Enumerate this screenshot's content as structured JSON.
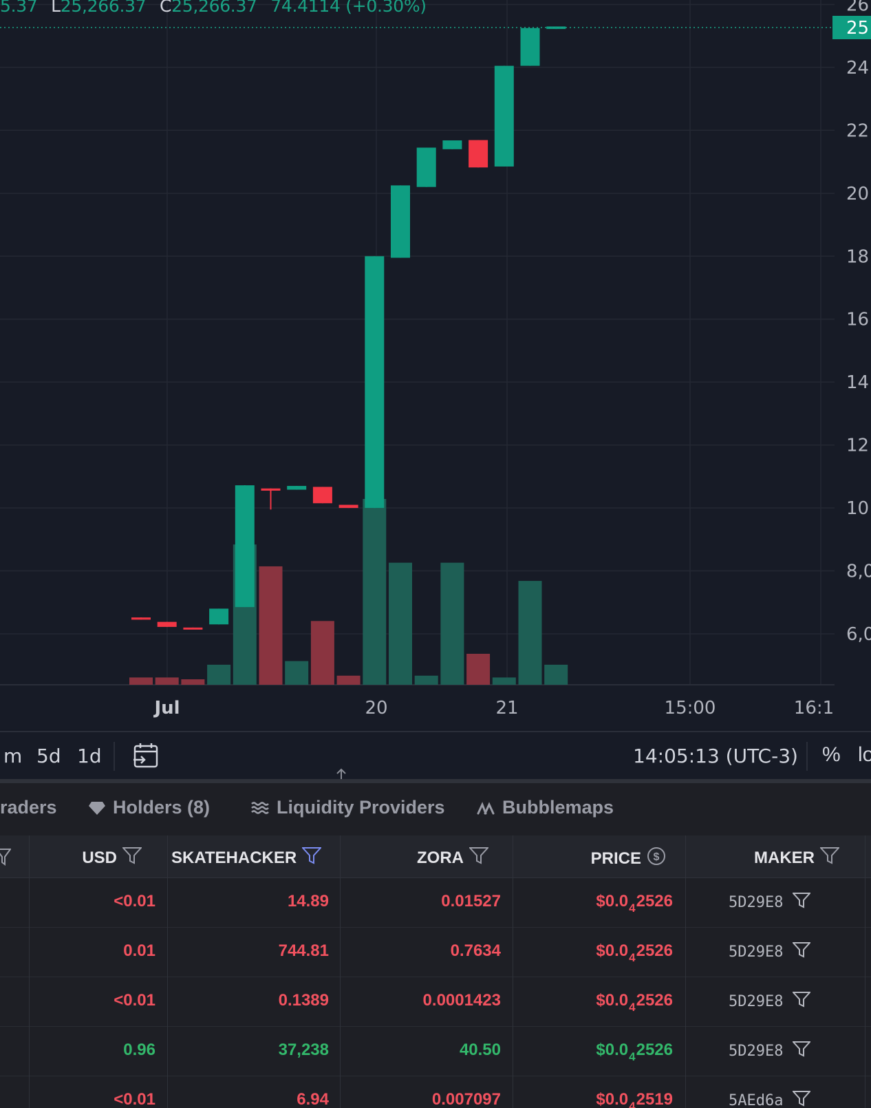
{
  "ohlc": {
    "open_partial": "5.37",
    "low_key": "L",
    "low": "25,266.37",
    "close_key": "C",
    "close": "25,266.37",
    "change": "74.4114 (+0.30%)"
  },
  "price_axis": {
    "labels": [
      "26",
      "25",
      "24",
      "22",
      "20",
      "18",
      "16",
      "14",
      "12",
      "10",
      "8,0",
      "6,0"
    ],
    "current_value_tag": "25"
  },
  "chart_data": {
    "type": "candlestick",
    "title": "",
    "x_tick_labels": [
      "Jul",
      "20",
      "21",
      "15:00",
      "16:1"
    ],
    "y_tick_labels": [
      "6,0",
      "8,0",
      "10",
      "12",
      "14",
      "16",
      "18",
      "20",
      "22",
      "24",
      "26"
    ],
    "y_unit": "thousands",
    "ylim": [
      4400,
      26800
    ],
    "current_price": 25266.37,
    "candles": [
      {
        "o": 6520,
        "c": 6450,
        "h": 6520,
        "l": 6450
      },
      {
        "o": 6380,
        "c": 6220,
        "h": 6380,
        "l": 6220
      },
      {
        "o": 6200,
        "c": 6150,
        "h": 6200,
        "l": 6150
      },
      {
        "o": 6300,
        "c": 6800,
        "h": 6800,
        "l": 6300
      },
      {
        "o": 6850,
        "c": 10720,
        "h": 10720,
        "l": 6850
      },
      {
        "o": 10620,
        "c": 10550,
        "h": 10620,
        "l": 9950
      },
      {
        "o": 10580,
        "c": 10700,
        "h": 10700,
        "l": 10580
      },
      {
        "o": 10670,
        "c": 10150,
        "h": 10670,
        "l": 10150
      },
      {
        "o": 10100,
        "c": 10000,
        "h": 10100,
        "l": 10000
      },
      {
        "o": 10000,
        "c": 18000,
        "h": 18000,
        "l": 10000
      },
      {
        "o": 17950,
        "c": 20250,
        "h": 20250,
        "l": 17950
      },
      {
        "o": 20200,
        "c": 21450,
        "h": 21450,
        "l": 20200
      },
      {
        "o": 21400,
        "c": 21680,
        "h": 21680,
        "l": 21400
      },
      {
        "o": 21690,
        "c": 20820,
        "h": 21690,
        "l": 20820
      },
      {
        "o": 20850,
        "c": 24050,
        "h": 24050,
        "l": 20850
      },
      {
        "o": 24050,
        "c": 25250,
        "h": 25250,
        "l": 24050
      },
      {
        "o": 25220,
        "c": 25300,
        "h": 25300,
        "l": 25220
      }
    ],
    "volume": [
      {
        "v": 4,
        "up": false
      },
      {
        "v": 4,
        "up": false
      },
      {
        "v": 3,
        "up": false
      },
      {
        "v": 11,
        "up": true
      },
      {
        "v": 77,
        "up": true
      },
      {
        "v": 65,
        "up": false
      },
      {
        "v": 13,
        "up": true
      },
      {
        "v": 35,
        "up": false
      },
      {
        "v": 5,
        "up": false
      },
      {
        "v": 102,
        "up": true
      },
      {
        "v": 67,
        "up": true
      },
      {
        "v": 5,
        "up": true
      },
      {
        "v": 67,
        "up": true
      },
      {
        "v": 17,
        "up": false
      },
      {
        "v": 4,
        "up": true
      },
      {
        "v": 57,
        "up": true
      },
      {
        "v": 11,
        "up": true
      }
    ],
    "colors": {
      "up": "#0f9e82",
      "down": "#f23645",
      "vol_up": "#1e5f55",
      "vol_down": "#8a3440"
    }
  },
  "toolbar": {
    "timeframes": [
      "m",
      "5d",
      "1d"
    ],
    "clock": "14:05:13 (UTC-3)",
    "percent": "%",
    "log": "lo"
  },
  "tabs": [
    {
      "label": "raders",
      "icon": ""
    },
    {
      "label": "Holders (8)",
      "icon": "diamond-icon"
    },
    {
      "label": "Liquidity Providers",
      "icon": "waves-icon"
    },
    {
      "label": "Bubblemaps",
      "icon": "bubblemaps-icon"
    }
  ],
  "table": {
    "headers": {
      "usd": "USD",
      "token": "SKATEHACKER",
      "quote": "ZORA",
      "price": "PRICE",
      "maker": "MAKER"
    },
    "rows": [
      {
        "usd": "<0.01",
        "token": "14.89",
        "quote": "0.01527",
        "price_a": "$0.0",
        "price_sub": "4",
        "price_b": "2526",
        "maker": "5D29E8",
        "side": "sell"
      },
      {
        "usd": "0.01",
        "token": "744.81",
        "quote": "0.7634",
        "price_a": "$0.0",
        "price_sub": "4",
        "price_b": "2526",
        "maker": "5D29E8",
        "side": "sell"
      },
      {
        "usd": "<0.01",
        "token": "0.1389",
        "quote": "0.0001423",
        "price_a": "$0.0",
        "price_sub": "4",
        "price_b": "2526",
        "maker": "5D29E8",
        "side": "sell"
      },
      {
        "usd": "0.96",
        "token": "37,238",
        "quote": "40.50",
        "price_a": "$0.0",
        "price_sub": "4",
        "price_b": "2526",
        "maker": "5D29E8",
        "side": "buy"
      },
      {
        "usd": "<0.01",
        "token": "6.94",
        "quote": "0.007097",
        "price_a": "$0.0",
        "price_sub": "4",
        "price_b": "2519",
        "maker": "5AEd6a",
        "side": "sell"
      }
    ]
  }
}
